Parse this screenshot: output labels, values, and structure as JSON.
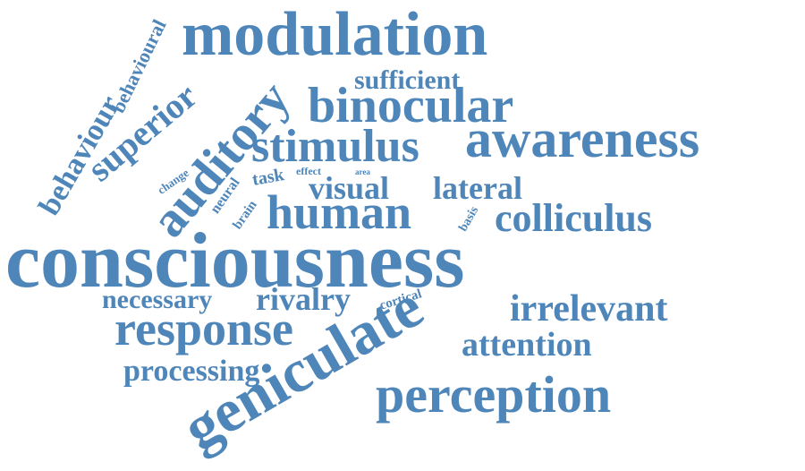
{
  "colors": {
    "word": "#4f86b9",
    "background": "#ffffff"
  },
  "words": {
    "consciousness": "consciousness",
    "modulation": "modulation",
    "awareness": "awareness",
    "geniculate": "geniculate",
    "perception": "perception",
    "binocular": "binocular",
    "stimulus": "stimulus",
    "human": "human",
    "response": "response",
    "auditory": "auditory",
    "colliculus": "colliculus",
    "irrelevant": "irrelevant",
    "attention": "attention",
    "superior": "superior",
    "rivalry": "rivalry",
    "visual": "visual",
    "lateral": "lateral",
    "behaviour": "behaviour",
    "necessary": "necessary",
    "processing": "processing",
    "sufficient": "sufficient",
    "behavioural": "behavioural",
    "task": "task",
    "neural": "neural",
    "brain": "brain",
    "change": "change",
    "effect": "effect",
    "area": "area",
    "basis": "basis",
    "cortical": "cortical"
  }
}
